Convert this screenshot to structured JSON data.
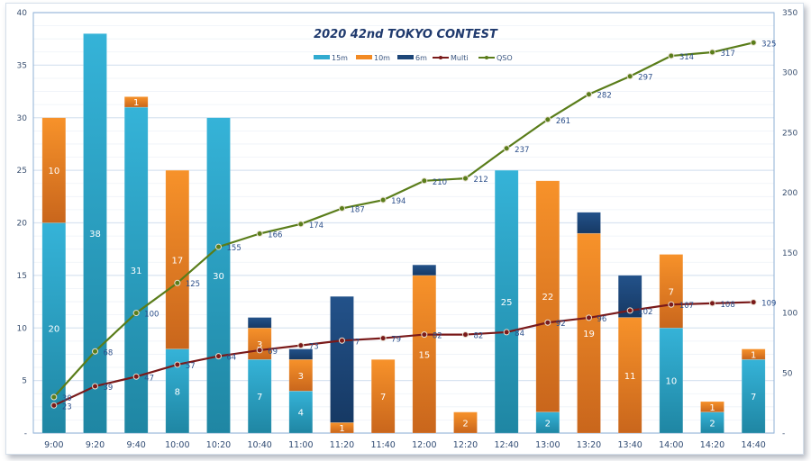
{
  "chart_data": {
    "type": "bar",
    "title": "2020 42nd TOKYO  CONTEST",
    "categories": [
      "9:00",
      "9:20",
      "9:40",
      "10:00",
      "10:20",
      "10:40",
      "11:00",
      "11:20",
      "11:40",
      "12:00",
      "12:20",
      "12:40",
      "13:00",
      "13:20",
      "13:40",
      "14:00",
      "14:20",
      "14:40"
    ],
    "stacked": true,
    "series": [
      {
        "name": "15m",
        "kind": "bar",
        "axis": "left",
        "color": "#31abd0",
        "values": [
          20,
          38,
          31,
          8,
          30,
          7,
          4,
          0,
          0,
          0,
          0,
          25,
          2,
          0,
          0,
          10,
          2,
          7
        ]
      },
      {
        "name": "10m",
        "kind": "bar",
        "axis": "left",
        "color": "#f28a24",
        "values": [
          10,
          0,
          1,
          17,
          0,
          3,
          3,
          1,
          7,
          15,
          2,
          0,
          22,
          19,
          11,
          7,
          1,
          1
        ]
      },
      {
        "name": "6m",
        "kind": "bar",
        "axis": "left",
        "color": "#1d4678",
        "values": [
          0,
          0,
          0,
          0,
          0,
          1,
          1,
          12,
          0,
          1,
          0,
          0,
          0,
          2,
          4,
          0,
          0,
          0
        ]
      },
      {
        "name": "Multi",
        "kind": "line",
        "axis": "right",
        "color": "#7a1a1a",
        "values": [
          23,
          39,
          47,
          57,
          64,
          69,
          73,
          77,
          79,
          82,
          82,
          84,
          92,
          96,
          102,
          107,
          108,
          109
        ]
      },
      {
        "name": "QSO",
        "kind": "line",
        "axis": "right",
        "color": "#5a7d1a",
        "values": [
          30,
          68,
          100,
          125,
          155,
          166,
          174,
          187,
          194,
          210,
          212,
          237,
          261,
          282,
          297,
          314,
          317,
          325
        ]
      }
    ],
    "left_axis": {
      "ylim": [
        0,
        40
      ],
      "ticks": [
        "-",
        "5",
        "10",
        "15",
        "20",
        "25",
        "30",
        "35",
        "40"
      ]
    },
    "right_axis": {
      "ylim": [
        0,
        350
      ],
      "ticks": [
        "-",
        "50",
        "100",
        "150",
        "200",
        "250",
        "300",
        "350"
      ]
    },
    "legend": {
      "position": "top-center",
      "entries": [
        "15m",
        "10m",
        "6m",
        "Multi",
        "QSO"
      ]
    },
    "grid": true,
    "xlabel": "",
    "ylabel": ""
  }
}
